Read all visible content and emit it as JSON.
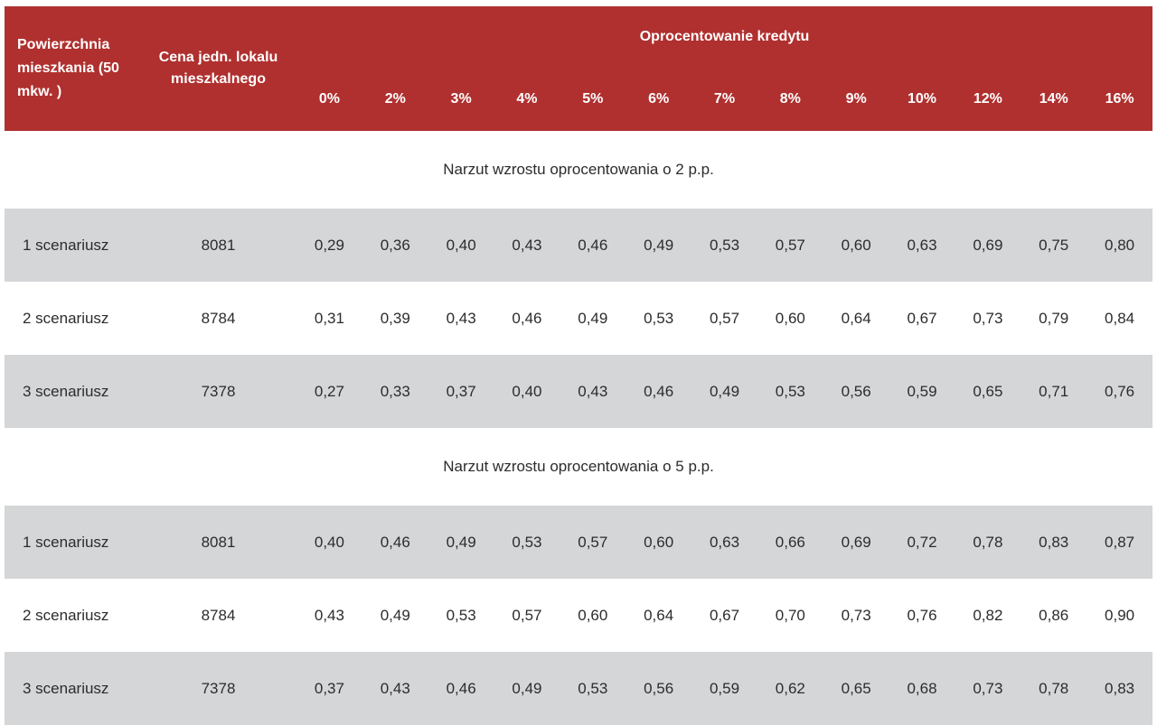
{
  "header": {
    "area_label": "Powierzchnia mieszkania (50 mkw. )",
    "price_label": "Cena jedn. lokalu mieszkalnego",
    "rate_group_label": "Oprocentowanie kredytu",
    "rates": [
      "0%",
      "2%",
      "3%",
      "4%",
      "5%",
      "6%",
      "7%",
      "8%",
      "9%",
      "10%",
      "12%",
      "14%",
      "16%"
    ]
  },
  "sections": [
    {
      "title": "Narzut wzrostu oprocentowania o 2 p.p.",
      "rows": [
        {
          "label": "1 scenariusz",
          "price": "8081",
          "values": [
            "0,29",
            "0,36",
            "0,40",
            "0,43",
            "0,46",
            "0,49",
            "0,53",
            "0,57",
            "0,60",
            "0,63",
            "0,69",
            "0,75",
            "0,80"
          ]
        },
        {
          "label": "2 scenariusz",
          "price": "8784",
          "values": [
            "0,31",
            "0,39",
            "0,43",
            "0,46",
            "0,49",
            "0,53",
            "0,57",
            "0,60",
            "0,64",
            "0,67",
            "0,73",
            "0,79",
            "0,84"
          ]
        },
        {
          "label": "3 scenariusz",
          "price": "7378",
          "values": [
            "0,27",
            "0,33",
            "0,37",
            "0,40",
            "0,43",
            "0,46",
            "0,49",
            "0,53",
            "0,56",
            "0,59",
            "0,65",
            "0,71",
            "0,76"
          ]
        }
      ]
    },
    {
      "title": "Narzut wzrostu oprocentowania o 5 p.p.",
      "rows": [
        {
          "label": "1 scenariusz",
          "price": "8081",
          "values": [
            "0,40",
            "0,46",
            "0,49",
            "0,53",
            "0,57",
            "0,60",
            "0,63",
            "0,66",
            "0,69",
            "0,72",
            "0,78",
            "0,83",
            "0,87"
          ]
        },
        {
          "label": "2 scenariusz",
          "price": "8784",
          "values": [
            "0,43",
            "0,49",
            "0,53",
            "0,57",
            "0,60",
            "0,64",
            "0,67",
            "0,70",
            "0,73",
            "0,76",
            "0,82",
            "0,86",
            "0,90"
          ]
        },
        {
          "label": "3 scenariusz",
          "price": "7378",
          "values": [
            "0,37",
            "0,43",
            "0,46",
            "0,49",
            "0,53",
            "0,56",
            "0,59",
            "0,62",
            "0,65",
            "0,68",
            "0,73",
            "0,78",
            "0,83"
          ]
        }
      ]
    }
  ],
  "colors": {
    "header_bg": "#b0302f",
    "row_shade": "#d5d6d8",
    "text": "#2c2c2c"
  }
}
